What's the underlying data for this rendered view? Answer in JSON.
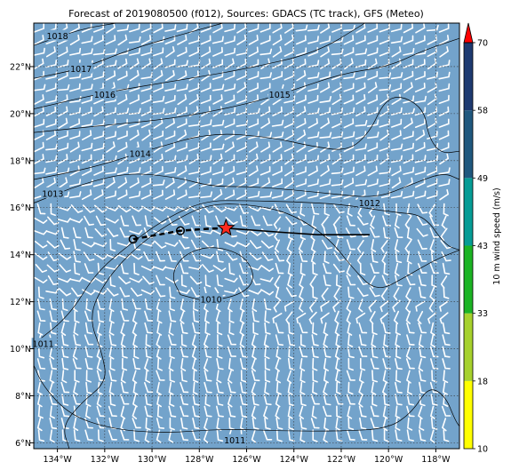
{
  "title": "Forecast of 2019080500 (f012), Sources: GDACS (TC track), GFS (Meteo)",
  "colors": {
    "ocean": "#73a3cb",
    "land": "#ffffff",
    "barb": "#ffffff",
    "contour": "#000000",
    "track_marker": "#ff2a1e"
  },
  "map": {
    "lon_range": [
      -135.0,
      -117.0
    ],
    "lat_range": [
      5.75,
      23.85
    ],
    "lon_ticks": [
      {
        "value": -134,
        "label": "134°W"
      },
      {
        "value": -132,
        "label": "132°W"
      },
      {
        "value": -130,
        "label": "130°W"
      },
      {
        "value": -128,
        "label": "128°W"
      },
      {
        "value": -126,
        "label": "126°W"
      },
      {
        "value": -124,
        "label": "124°W"
      },
      {
        "value": -122,
        "label": "122°W"
      },
      {
        "value": -120,
        "label": "120°W"
      },
      {
        "value": -118,
        "label": "118°W"
      }
    ],
    "lat_ticks": [
      {
        "value": 6,
        "label": "6°N"
      },
      {
        "value": 8,
        "label": "8°N"
      },
      {
        "value": 10,
        "label": "10°N"
      },
      {
        "value": 12,
        "label": "12°N"
      },
      {
        "value": 14,
        "label": "14°N"
      },
      {
        "value": 16,
        "label": "16°N"
      },
      {
        "value": 18,
        "label": "18°N"
      },
      {
        "value": 20,
        "label": "20°N"
      },
      {
        "value": 22,
        "label": "22°N"
      }
    ],
    "grid": true
  },
  "isobars": [
    {
      "label": "1018",
      "label_at": [
        -134.0,
        23.3
      ],
      "points": [
        [
          -135,
          22.9
        ],
        [
          -133,
          23.6
        ],
        [
          -131.5,
          23.85
        ]
      ]
    },
    {
      "label": "1017",
      "label_at": [
        -133.0,
        21.9
      ],
      "points": [
        [
          -135,
          21.5
        ],
        [
          -133,
          21.9
        ],
        [
          -131,
          22.7
        ],
        [
          -129,
          23.3
        ],
        [
          -127,
          23.85
        ]
      ]
    },
    {
      "label": "1016",
      "label_at": [
        -132.0,
        20.8
      ],
      "points": [
        [
          -135,
          20.2
        ],
        [
          -132,
          20.9
        ],
        [
          -129,
          21.4
        ],
        [
          -126,
          21.9
        ],
        [
          -123,
          22.6
        ],
        [
          -121,
          23.85
        ]
      ]
    },
    {
      "label": "1015",
      "label_at": [
        -124.6,
        20.8
      ],
      "points": [
        [
          -135,
          19.2
        ],
        [
          -132,
          19.5
        ],
        [
          -129,
          19.8
        ],
        [
          -126,
          20.4
        ],
        [
          -124,
          21.0
        ],
        [
          -122,
          21.7
        ],
        [
          -120,
          22.0
        ],
        [
          -118.5,
          22.7
        ],
        [
          -117,
          23.2
        ]
      ]
    },
    {
      "label": "1014",
      "label_at": [
        -130.5,
        18.3
      ],
      "points": [
        [
          -135,
          17.2
        ],
        [
          -132.5,
          17.7
        ],
        [
          -130,
          18.5
        ],
        [
          -127.5,
          19.2
        ],
        [
          -125,
          19.0
        ],
        [
          -123.2,
          18.6
        ],
        [
          -121.7,
          18.4
        ],
        [
          -120.8,
          19.2
        ],
        [
          -120.2,
          20.5
        ],
        [
          -119.5,
          20.8
        ],
        [
          -118.5,
          20.2
        ],
        [
          -118.3,
          19.0
        ],
        [
          -117.8,
          18.3
        ],
        [
          -117,
          18.4
        ]
      ]
    },
    {
      "label": "1013",
      "label_at": [
        -134.2,
        16.6
      ],
      "points": [
        [
          -135,
          16.2
        ],
        [
          -133,
          17.0
        ],
        [
          -131,
          17.5
        ],
        [
          -129,
          17.3
        ],
        [
          -127.5,
          16.9
        ],
        [
          -126,
          16.9
        ],
        [
          -124.5,
          16.8
        ],
        [
          -122.5,
          16.6
        ],
        [
          -120.5,
          16.4
        ],
        [
          -119,
          17.0
        ],
        [
          -117.7,
          17.5
        ],
        [
          -117,
          17.2
        ]
      ]
    },
    {
      "label": "1012",
      "label_at": [
        -120.8,
        16.2
      ],
      "points": [
        [
          -135,
          10.2
        ],
        [
          -133.5,
          11.4
        ],
        [
          -132.4,
          13.2
        ],
        [
          -131,
          14.4
        ],
        [
          -129.5,
          15.5
        ],
        [
          -127.8,
          16.3
        ],
        [
          -126,
          16.3
        ],
        [
          -124,
          16.25
        ],
        [
          -122,
          16.15
        ],
        [
          -119.8,
          15.8
        ],
        [
          -118.5,
          15.7
        ],
        [
          -117.6,
          14.4
        ],
        [
          -117,
          14.2
        ]
      ]
    },
    {
      "label": "1011",
      "label_at": [
        -134.6,
        10.2
      ],
      "points": [
        [
          -135,
          9.3
        ],
        [
          -134.6,
          8.4
        ],
        [
          -133.5,
          7.2
        ],
        [
          -131.8,
          6.6
        ],
        [
          -129.5,
          6.4
        ],
        [
          -127,
          6.6
        ],
        [
          -124.5,
          6.5
        ],
        [
          -122,
          6.5
        ],
        [
          -120,
          6.6
        ],
        [
          -119,
          7.3
        ],
        [
          -118.3,
          8.4
        ],
        [
          -117.6,
          8.0
        ],
        [
          -117.2,
          7.0
        ],
        [
          -117,
          6.7
        ]
      ]
    },
    {
      "label": "1011",
      "label_at": [
        -126.5,
        6.1
      ],
      "points": [
        [
          -133.5,
          5.75
        ],
        [
          -133.8,
          6.7
        ],
        [
          -133.0,
          7.7
        ],
        [
          -131.9,
          8.6
        ],
        [
          -132.1,
          9.8
        ],
        [
          -132.7,
          11.4
        ],
        [
          -131.9,
          13.0
        ],
        [
          -130.6,
          14.4
        ],
        [
          -129,
          15.5
        ],
        [
          -127.5,
          16.2
        ],
        [
          -125.5,
          16.1
        ],
        [
          -124,
          15.7
        ],
        [
          -122.5,
          14.7
        ],
        [
          -121.5,
          13.4
        ],
        [
          -120.5,
          12.4
        ],
        [
          -119.2,
          13.1
        ],
        [
          -118,
          13.8
        ],
        [
          -117,
          14.2
        ]
      ]
    },
    {
      "label": "1010",
      "label_at": [
        -127.5,
        12.1
      ],
      "points": [
        [
          -128.8,
          12.3
        ],
        [
          -127.7,
          12.0
        ],
        [
          -126.2,
          12.3
        ],
        [
          -125.6,
          13.0
        ],
        [
          -126.1,
          14.0
        ],
        [
          -127.5,
          14.4
        ],
        [
          -128.7,
          14.0
        ],
        [
          -129.2,
          13.1
        ],
        [
          -128.8,
          12.3
        ]
      ]
    }
  ],
  "track": {
    "past": [
      [
        -130.8,
        14.66
      ],
      [
        -128.8,
        15.02
      ],
      [
        -127.7,
        15.1
      ],
      [
        -126.87,
        15.13
      ]
    ],
    "forecast": [
      [
        -126.87,
        15.13
      ],
      [
        -124.5,
        14.95
      ],
      [
        -123,
        14.85
      ],
      [
        -121.5,
        14.85
      ],
      [
        -120.8,
        14.85
      ]
    ],
    "points": [
      [
        -130.8,
        14.66
      ],
      [
        -128.8,
        15.02
      ]
    ],
    "current": [
      -126.87,
      15.13
    ]
  },
  "colorbar": {
    "label": "10 m wind speed (m/s)",
    "ticks": [
      "10",
      "18",
      "33",
      "43",
      "49",
      "58",
      "70"
    ],
    "colors": [
      "#ffff00",
      "#a7d12d",
      "#1cb324",
      "#069c95",
      "#20587e",
      "#1e3a70",
      "#ff0000"
    ]
  }
}
